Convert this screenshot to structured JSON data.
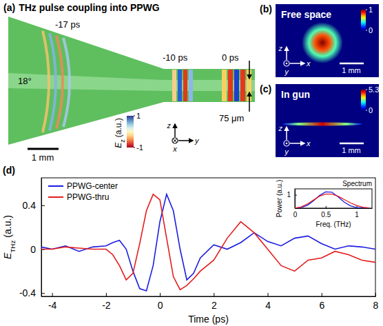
{
  "chart_data": [
    {
      "type": "image",
      "panel": "(a)",
      "title": "THz pulse coupling into PPWG",
      "annotations": [
        "-17 ps",
        "-10 ps",
        "0 ps",
        "18°",
        "75 μm",
        "1 mm"
      ],
      "axis_labels": [
        "z",
        "y",
        "x"
      ],
      "colorbar_label": [
        "E",
        "z",
        "(a.u.)"
      ],
      "colorbar_range": [
        -1,
        1
      ],
      "colorbar_ticks": [
        1,
        -1
      ]
    },
    {
      "type": "image",
      "panel": "(b)",
      "title": "Free space",
      "annotations": [
        "1 mm"
      ],
      "axis_labels": [
        "z",
        "x",
        "y"
      ],
      "colorbar_range": [
        0,
        1
      ],
      "colorbar_ticks": [
        1,
        0
      ]
    },
    {
      "type": "image",
      "panel": "(c)",
      "title": "In gun",
      "annotations": [
        "1 mm"
      ],
      "axis_labels": [
        "z",
        "x",
        "y"
      ],
      "colorbar_range": [
        0,
        5.3
      ],
      "colorbar_ticks": [
        5.3,
        0
      ]
    },
    {
      "type": "line",
      "panel": "(d)",
      "xlabel": "Time (ps)",
      "ylabel": [
        "E",
        "THz",
        "(a.u.)"
      ],
      "x": [
        -4.4,
        -4,
        -3.5,
        -3,
        -2.5,
        -2,
        -1.75,
        -1.5,
        -1.25,
        -1,
        -0.75,
        -0.5,
        -0.25,
        0,
        0.25,
        0.5,
        0.75,
        1,
        1.25,
        1.5,
        2,
        2.5,
        3,
        3.5,
        4,
        4.5,
        5,
        5.5,
        6,
        6.5,
        7,
        7.5,
        8
      ],
      "series": [
        {
          "name": "PPWG-center",
          "color": "#1c1ce0",
          "values": [
            0.02,
            0,
            0.03,
            -0.02,
            0.02,
            0.03,
            0.06,
            0.08,
            0,
            -0.2,
            -0.36,
            -0.38,
            -0.15,
            0.25,
            0.5,
            0.35,
            0,
            -0.28,
            -0.22,
            -0.08,
            0.04,
            0,
            0.06,
            0.15,
            0.07,
            0.03,
            0.1,
            0.12,
            0.05,
            0,
            0.03,
            0.02,
            0
          ]
        },
        {
          "name": "PPWG-thru",
          "color": "#e41c1c",
          "values": [
            0,
            0,
            0.02,
            0.01,
            0,
            0,
            -0.05,
            -0.15,
            -0.28,
            -0.22,
            0.05,
            0.35,
            0.5,
            0.45,
            0.1,
            -0.25,
            -0.37,
            -0.33,
            -0.27,
            -0.2,
            -0.1,
            0.1,
            0.25,
            0.15,
            0,
            -0.15,
            -0.2,
            -0.1,
            -0.08,
            -0.02,
            -0.05,
            -0.1,
            -0.12
          ]
        }
      ],
      "xlim": [
        -4.4,
        8
      ],
      "ylim": [
        -0.43,
        0.65
      ],
      "xticks": [
        -4,
        -2,
        0,
        2,
        4,
        6,
        8
      ],
      "yticks": [
        -0.4,
        0,
        0.4
      ],
      "legend": "upper left"
    },
    {
      "type": "line",
      "title": "Spectrum",
      "xlabel": "Freq. (THz)",
      "ylabel": "Power (a.u.)",
      "x": [
        0,
        0.1,
        0.2,
        0.3,
        0.4,
        0.5,
        0.6,
        0.7,
        0.8,
        0.9,
        1,
        1.1,
        1.2
      ],
      "series": [
        {
          "color": "#1c1ce0",
          "values": [
            0,
            0.05,
            0.2,
            0.55,
            0.95,
            1.22,
            1.2,
            0.85,
            0.45,
            0.18,
            0.05,
            0.02,
            0
          ]
        },
        {
          "color": "#e41c1c",
          "values": [
            0,
            0.08,
            0.3,
            0.6,
            0.9,
            1.05,
            1.05,
            0.9,
            0.65,
            0.4,
            0.2,
            0.07,
            0.02
          ]
        }
      ],
      "xlim": [
        0,
        1.25
      ],
      "ylim": [
        0,
        1.45
      ],
      "xticks": [
        0,
        0.5,
        1
      ],
      "yticks": [
        1
      ]
    }
  ]
}
